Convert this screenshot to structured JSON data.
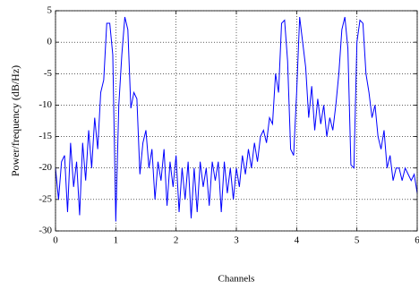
{
  "chart_data": {
    "type": "line",
    "xlabel": "Channels",
    "ylabel": "Power/frequency (dB/Hz)",
    "x": [
      0,
      0.05,
      0.1,
      0.15,
      0.2,
      0.25,
      0.3,
      0.35,
      0.4,
      0.45,
      0.5,
      0.55,
      0.6,
      0.65,
      0.7,
      0.75,
      0.8,
      0.85,
      0.9,
      0.95,
      1,
      1.05,
      1.1,
      1.15,
      1.2,
      1.25,
      1.3,
      1.35,
      1.4,
      1.45,
      1.5,
      1.55,
      1.6,
      1.65,
      1.7,
      1.75,
      1.8,
      1.85,
      1.9,
      1.95,
      2,
      2.05,
      2.1,
      2.15,
      2.2,
      2.25,
      2.3,
      2.35,
      2.4,
      2.45,
      2.5,
      2.55,
      2.6,
      2.65,
      2.7,
      2.75,
      2.8,
      2.85,
      2.9,
      2.95,
      3,
      3.05,
      3.1,
      3.15,
      3.2,
      3.25,
      3.3,
      3.35,
      3.4,
      3.45,
      3.5,
      3.55,
      3.6,
      3.65,
      3.7,
      3.75,
      3.8,
      3.85,
      3.9,
      3.95,
      4,
      4.05,
      4.1,
      4.15,
      4.2,
      4.25,
      4.3,
      4.35,
      4.4,
      4.45,
      4.5,
      4.55,
      4.6,
      4.65,
      4.7,
      4.75,
      4.8,
      4.85,
      4.9,
      4.95,
      5,
      5.05,
      5.1,
      5.15,
      5.2,
      5.25,
      5.3,
      5.35,
      5.4,
      5.45,
      5.5,
      5.55,
      5.6,
      5.65,
      5.7,
      5.75,
      5.8,
      5.85,
      5.9,
      5.95,
      6
    ],
    "series": [
      {
        "color": "#0000ff",
        "values": [
          -20,
          -25,
          -19,
          -18,
          -27,
          -16,
          -23,
          -19,
          -27.5,
          -16,
          -22,
          -14,
          -20,
          -12,
          -17,
          -8,
          -6,
          3,
          3,
          -2,
          -28.5,
          -10,
          -2,
          4,
          2,
          -10.5,
          -8,
          -9,
          -21,
          -16,
          -14,
          -20,
          -17,
          -25,
          -19,
          -22,
          -17,
          -26,
          -19,
          -23,
          -18,
          -27,
          -20,
          -25,
          -19,
          -28,
          -20,
          -27,
          -19,
          -23,
          -20,
          -26,
          -19,
          -22,
          -19,
          -27,
          -19,
          -24,
          -20,
          -25,
          -20,
          -23,
          -18,
          -21,
          -17,
          -20,
          -16,
          -19,
          -15,
          -14,
          -16,
          -12,
          -13,
          -5,
          -8,
          3,
          3.5,
          -3,
          -17,
          -18,
          -8,
          4,
          0,
          -4,
          -12,
          -7,
          -14,
          -9,
          -13,
          -10,
          -15,
          -12,
          -14,
          -10,
          -5,
          2,
          4,
          -1,
          -19.5,
          -20,
          0,
          3.5,
          3,
          -5,
          -8,
          -12,
          -10,
          -15,
          -17,
          -14,
          -20,
          -18,
          -22,
          -20,
          -20,
          -22,
          -20,
          -21,
          -22,
          -21,
          -24
        ]
      }
    ],
    "xlim": [
      0,
      6
    ],
    "xticks": [
      0,
      1,
      2,
      3,
      4,
      5,
      6
    ],
    "ylim": [
      -30,
      5
    ],
    "yticks": [
      -30,
      -25,
      -20,
      -15,
      -10,
      -5,
      0,
      5
    ],
    "grid": true
  }
}
